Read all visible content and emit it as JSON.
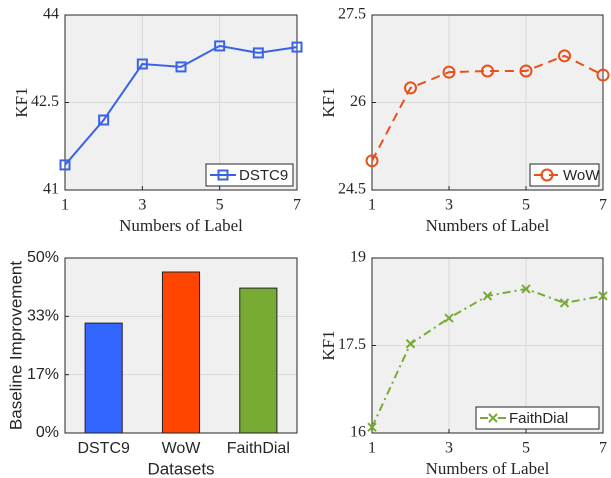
{
  "chart_data": [
    {
      "type": "line",
      "xlabel": "Numbers of Label",
      "ylabel": "KF1",
      "x": [
        1,
        2,
        3,
        4,
        5,
        6,
        7
      ],
      "xlim": [
        1,
        7
      ],
      "xticks": [
        1,
        3,
        5,
        7
      ],
      "ylim": [
        41,
        44
      ],
      "yticks": [
        41,
        42.5,
        44
      ],
      "grid": true,
      "legend": "lower right",
      "series": [
        {
          "name": "DSTC9",
          "color": "#3a62e8",
          "marker": "square",
          "linestyle": "solid",
          "values": [
            41.43,
            42.2,
            43.16,
            43.11,
            43.47,
            43.35,
            43.45
          ]
        }
      ]
    },
    {
      "type": "line",
      "xlabel": "Numbers of Label",
      "ylabel": "KF1",
      "x": [
        1,
        2,
        3,
        4,
        5,
        6,
        7
      ],
      "xlim": [
        1,
        7
      ],
      "xticks": [
        1,
        3,
        5,
        7
      ],
      "ylim": [
        24.5,
        27.5
      ],
      "yticks": [
        24.5,
        26,
        27.5
      ],
      "grid": true,
      "legend": "lower right",
      "series": [
        {
          "name": "WoW",
          "color": "#e8501c",
          "marker": "circle",
          "linestyle": "dashed",
          "values": [
            25.0,
            26.25,
            26.52,
            26.54,
            26.54,
            26.8,
            26.47
          ]
        }
      ]
    },
    {
      "type": "bar",
      "xlabel": "Datasets",
      "ylabel": "Baseline Improvement",
      "categories": [
        "DSTC9",
        "WoW",
        "FaithDial"
      ],
      "values": [
        31.4,
        46.0,
        41.4
      ],
      "colors": [
        "#3366ff",
        "#ff4500",
        "#77ab33"
      ],
      "ylim": [
        0,
        50
      ],
      "grid": true,
      "yticks": [
        {
          "value": 0,
          "label": "0%"
        },
        {
          "value": 16.67,
          "label": "17%"
        },
        {
          "value": 33.33,
          "label": "33%"
        },
        {
          "value": 50,
          "label": "50%"
        }
      ]
    },
    {
      "type": "line",
      "xlabel": "Numbers of Label",
      "ylabel": "KF1",
      "x": [
        1,
        2,
        3,
        4,
        5,
        6,
        7
      ],
      "xlim": [
        1,
        7
      ],
      "xticks": [
        1,
        3,
        5,
        7
      ],
      "ylim": [
        16,
        19
      ],
      "yticks": [
        16,
        17.5,
        19
      ],
      "grid": true,
      "legend": "lower right",
      "series": [
        {
          "name": "FaithDial",
          "color": "#77ab33",
          "marker": "x",
          "linestyle": "dashdot",
          "values": [
            16.1,
            17.53,
            17.97,
            18.35,
            18.47,
            18.23,
            18.35
          ]
        }
      ]
    }
  ]
}
